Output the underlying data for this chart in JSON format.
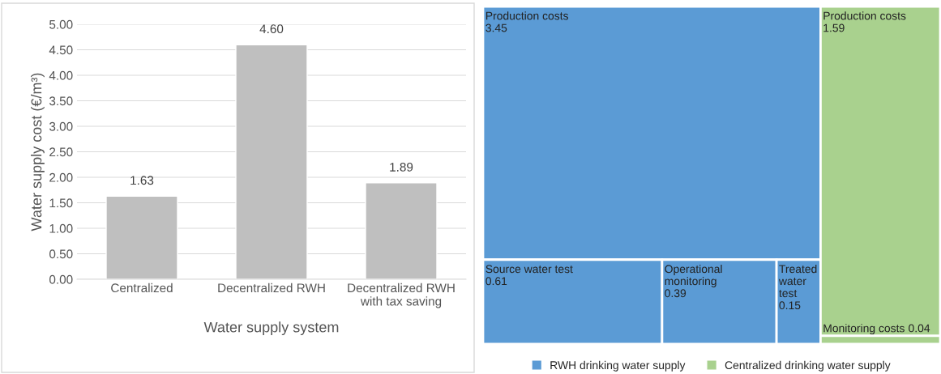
{
  "chart_data": [
    {
      "type": "bar",
      "xlabel": "Water supply system",
      "ylabel": "Water supply cost (€/m³)",
      "categories": [
        "Centralized",
        "Decentralized RWH",
        "Decentralized RWH\nwith tax saving"
      ],
      "values": [
        1.63,
        4.6,
        1.89
      ],
      "value_labels": [
        "1.63",
        "4.60",
        "1.89"
      ],
      "color": "#bfbfbf",
      "ylim": [
        0,
        5
      ],
      "yticks": [
        {
          "value": 0,
          "label": "0.00"
        },
        {
          "value": 0.5,
          "label": "0.50"
        },
        {
          "value": 1,
          "label": "1.00"
        },
        {
          "value": 1.5,
          "label": "1.50"
        },
        {
          "value": 2,
          "label": "2.00"
        },
        {
          "value": 2.5,
          "label": "2.50"
        },
        {
          "value": 3,
          "label": "3.00"
        },
        {
          "value": 3.5,
          "label": "3.50"
        },
        {
          "value": 4,
          "label": "4.00"
        },
        {
          "value": 4.5,
          "label": "4.50"
        },
        {
          "value": 5,
          "label": "5.00"
        }
      ],
      "grid": "y"
    },
    {
      "type": "other",
      "legend": "bottom",
      "data_labels": true,
      "categories": [
        "Production costs",
        "Source water test",
        "Operational monitoring",
        "Treated water test",
        "Production costs",
        "Monitoring costs"
      ],
      "series": [
        {
          "name": "RWH drinking water supply",
          "color": "#5b9bd5",
          "values": [
            3.45,
            0.61,
            0.39,
            0.15,
            null,
            null
          ]
        },
        {
          "name": "Centralized drinking water supply",
          "color": "#a9d18e",
          "values": [
            null,
            null,
            null,
            null,
            1.59,
            0.04
          ]
        }
      ]
    }
  ]
}
